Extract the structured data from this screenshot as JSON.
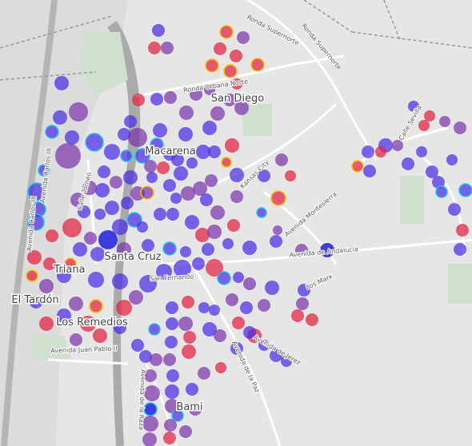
{
  "districts": [
    "San Diego",
    "Macarena",
    "Santa Cruz",
    "Triana",
    "El Tardón",
    "Los Remedios",
    "Bami"
  ],
  "streets": [
    "Ronda Supernorte",
    "Ronda Supernorte",
    "Ronda Urbana Norte",
    "Kansas City",
    "Avenida Montesierra",
    "Avenida de Andalucía",
    "Los Marx",
    "Avenida de la Paz",
    "Avenida de Jerez",
    "Avenida Juan Pablo II",
    "Avenida de la Raza",
    "Avenida Carlos III",
    "Calle Torneo",
    "San Fernando",
    "Calle Sevilla",
    "Avenida Carlos III"
  ]
}
